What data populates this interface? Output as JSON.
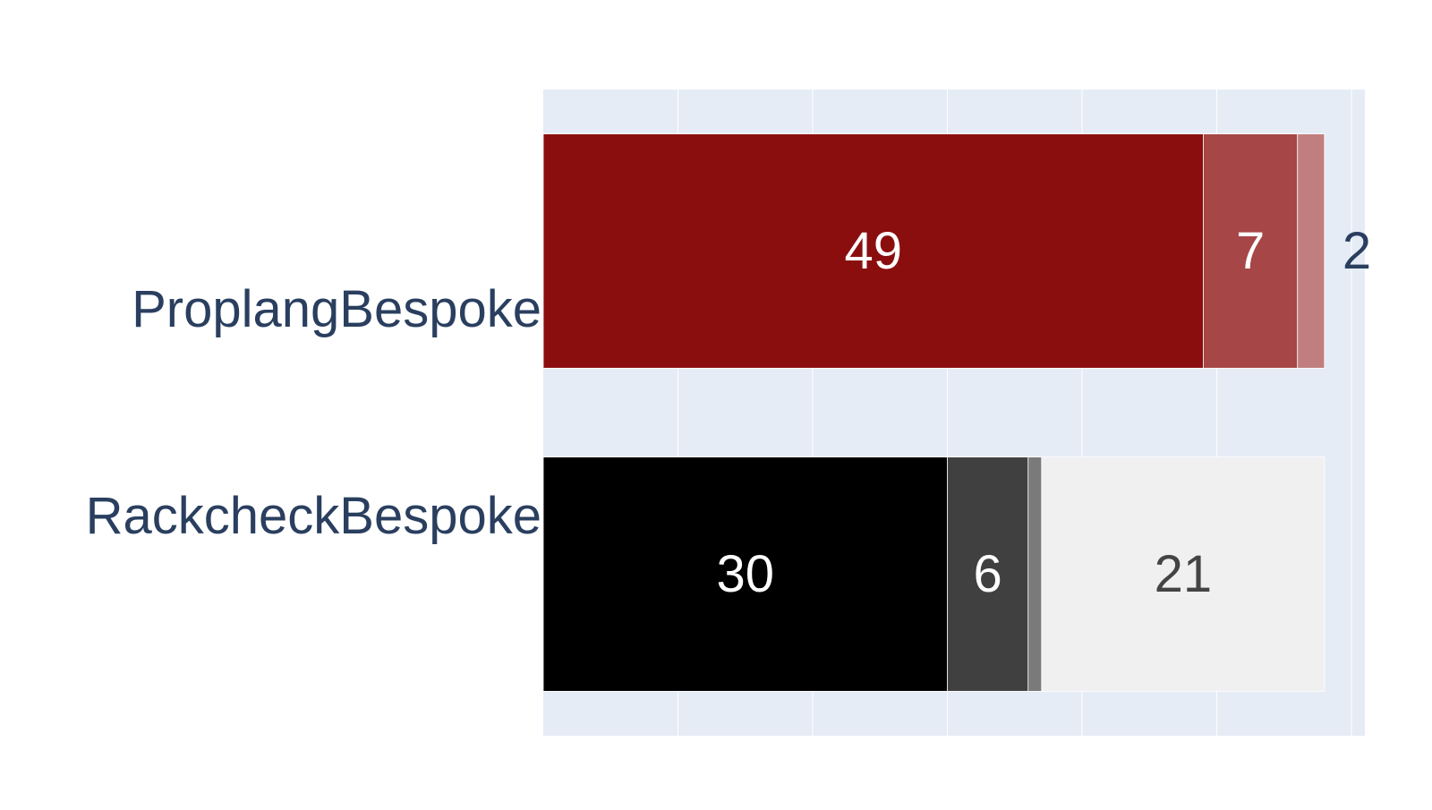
{
  "chart_data": {
    "type": "bar",
    "orientation": "horizontal",
    "barmode": "stack",
    "title": "",
    "xlabel": "",
    "ylabel": "",
    "xlim": [
      0,
      61
    ],
    "grid": true,
    "legend": "none",
    "categories": [
      "ProplangBespoke",
      "RackcheckBespoke"
    ],
    "segments": [
      [
        {
          "value": 49,
          "label": "49",
          "color": "#8b0e0e",
          "text_color": "#ffffff",
          "label_outside": false
        },
        {
          "value": 7,
          "label": "7",
          "color": "#a64646",
          "text_color": "#ffffff",
          "label_outside": false
        },
        {
          "value": 2,
          "label": "2",
          "color": "#c17e7e",
          "text_color": "#2a3f5f",
          "label_outside": true
        }
      ],
      [
        {
          "value": 30,
          "label": "30",
          "color": "#000000",
          "text_color": "#ffffff",
          "label_outside": false
        },
        {
          "value": 6,
          "label": "6",
          "color": "#404040",
          "text_color": "#ffffff",
          "label_outside": false
        },
        {
          "value": 1,
          "label": "",
          "color": "#7a7a7a",
          "text_color": "#ffffff",
          "label_outside": false
        },
        {
          "value": 21,
          "label": "21",
          "color": "#eff0ef",
          "text_color": "#444444",
          "label_outside": false
        }
      ]
    ],
    "colors": {
      "plot_background": "#e5ecf6",
      "gridline": "#ffffff",
      "category_text": "#2a3f5f"
    }
  }
}
